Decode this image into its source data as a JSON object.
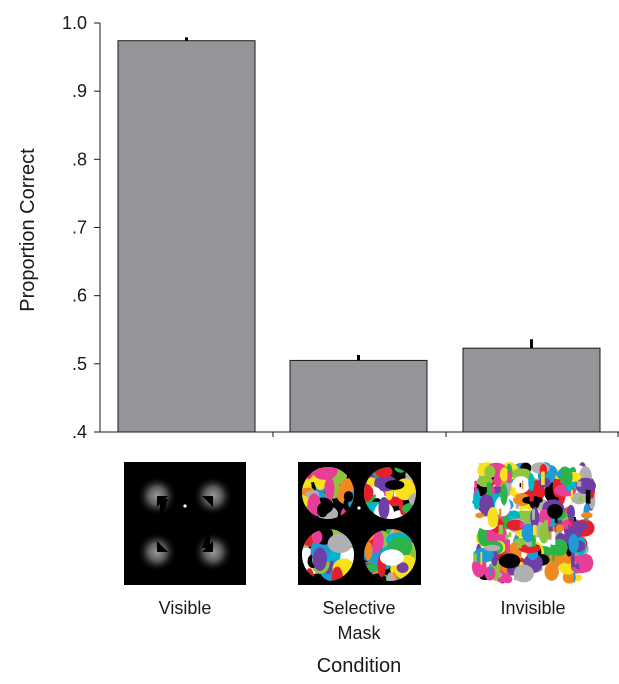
{
  "chart_data": {
    "type": "bar",
    "title": "",
    "xlabel": "Condition",
    "ylabel": "Proportion Correct",
    "ylim": [
      0.4,
      1.0
    ],
    "yticks": [
      {
        "value": 1.0,
        "label": "1.0"
      },
      {
        "value": 0.9,
        "label": ".9"
      },
      {
        "value": 0.8,
        "label": ".8"
      },
      {
        "value": 0.7,
        "label": ".7"
      },
      {
        "value": 0.6,
        "label": ".6"
      },
      {
        "value": 0.5,
        "label": ".5"
      },
      {
        "value": 0.4,
        "label": ".4"
      }
    ],
    "categories": [
      "Visible",
      "Selective Mask",
      "Invisible"
    ],
    "category_label_lines": [
      [
        "Visible"
      ],
      [
        "Selective",
        "Mask"
      ],
      [
        "Invisible"
      ]
    ],
    "values": [
      0.974,
      0.505,
      0.523
    ],
    "error_bars": [
      0.005,
      0.008,
      0.013
    ],
    "bar_color": "#939598",
    "grid": false,
    "legend": "none",
    "stimulus_images": [
      "visible-stimulus",
      "selective-mask-stimulus",
      "invisible-stimulus"
    ]
  }
}
